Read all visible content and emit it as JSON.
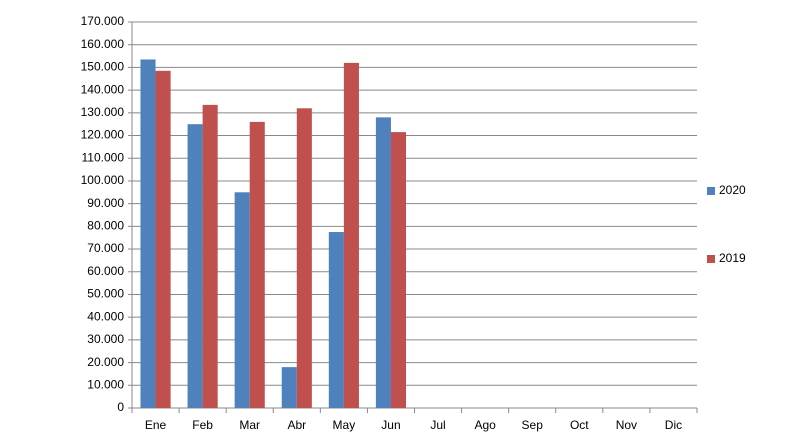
{
  "chart_data": {
    "type": "bar",
    "categories": [
      "Ene",
      "Feb",
      "Mar",
      "Abr",
      "May",
      "Jun",
      "Jul",
      "Ago",
      "Sep",
      "Oct",
      "Nov",
      "Dic"
    ],
    "series": [
      {
        "name": "2020",
        "color": "#4f81bd",
        "values": [
          153500,
          125000,
          95000,
          18000,
          77500,
          128000,
          null,
          null,
          null,
          null,
          null,
          null
        ]
      },
      {
        "name": "2019",
        "color": "#c0504d",
        "values": [
          148500,
          133500,
          126000,
          132000,
          152000,
          121500,
          null,
          null,
          null,
          null,
          null,
          null
        ]
      }
    ],
    "ylim": [
      0,
      170000
    ],
    "yticks": [
      0,
      {
        "value": 10000,
        "label": "10.000"
      },
      {
        "value": 20000,
        "label": "20.000"
      },
      {
        "value": 30000,
        "label": "30.000"
      },
      {
        "value": 40000,
        "label": "40.000"
      },
      {
        "value": 50000,
        "label": "50.000"
      },
      {
        "value": 60000,
        "label": "60.000"
      },
      {
        "value": 70000,
        "label": "70.000"
      },
      {
        "value": 80000,
        "label": "80.000"
      },
      {
        "value": 90000,
        "label": "90.000"
      },
      {
        "value": 100000,
        "label": "100.000"
      },
      {
        "value": 110000,
        "label": "110.000"
      },
      {
        "value": 120000,
        "label": "120.000"
      },
      {
        "value": 130000,
        "label": "130.000"
      },
      {
        "value": 140000,
        "label": "140.000"
      },
      {
        "value": 150000,
        "label": "150.000"
      },
      {
        "value": 160000,
        "label": "160.000"
      },
      {
        "value": 170000,
        "label": "170.000"
      }
    ],
    "grid": true,
    "legend": "right"
  }
}
